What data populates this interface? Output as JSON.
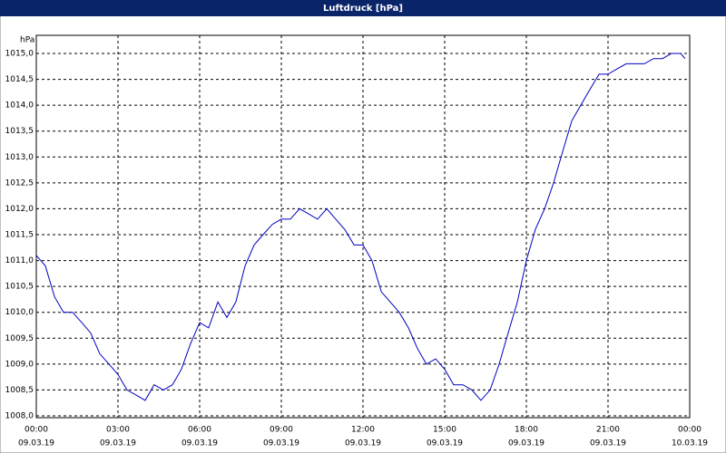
{
  "chart_data": {
    "type": "line",
    "title": "Luftdruck [hPa]",
    "y_unit": "hPa",
    "x": [
      0,
      0.33,
      0.67,
      1,
      1.33,
      1.67,
      2,
      2.33,
      2.67,
      3,
      3.33,
      3.67,
      4,
      4.33,
      4.67,
      5,
      5.33,
      5.67,
      6,
      6.33,
      6.67,
      7,
      7.33,
      7.67,
      8,
      8.33,
      8.67,
      9,
      9.33,
      9.67,
      10,
      10.33,
      10.67,
      11,
      11.33,
      11.67,
      12,
      12.33,
      12.67,
      13,
      13.33,
      13.67,
      14,
      14.33,
      14.67,
      15,
      15.33,
      15.67,
      16,
      16.33,
      16.67,
      17,
      17.33,
      17.67,
      18,
      18.33,
      18.67,
      19,
      19.33,
      19.67,
      20,
      20.33,
      20.67,
      21,
      21.33,
      21.67,
      22,
      22.33,
      22.67,
      23,
      23.33,
      23.67,
      23.83
    ],
    "series": [
      {
        "name": "Luftdruck",
        "color": "#0000c0",
        "values": [
          1011.1,
          1010.9,
          1010.3,
          1010.0,
          1010.0,
          1009.8,
          1009.6,
          1009.2,
          1009.0,
          1008.8,
          1008.5,
          1008.4,
          1008.3,
          1008.6,
          1008.5,
          1008.6,
          1008.9,
          1009.4,
          1009.8,
          1009.7,
          1010.2,
          1009.9,
          1010.2,
          1010.9,
          1011.3,
          1011.5,
          1011.7,
          1011.8,
          1011.8,
          1012.0,
          1011.9,
          1011.8,
          1012.0,
          1011.8,
          1011.6,
          1011.3,
          1011.3,
          1011.0,
          1010.4,
          1010.2,
          1010.0,
          1009.7,
          1009.3,
          1009.0,
          1009.1,
          1008.9,
          1008.6,
          1008.6,
          1008.5,
          1008.3,
          1008.5,
          1009.0,
          1009.6,
          1010.2,
          1011.0,
          1011.6,
          1012.0,
          1012.5,
          1013.1,
          1013.7,
          1014.0,
          1014.3,
          1014.6,
          1014.6,
          1014.7,
          1014.8,
          1014.8,
          1014.8,
          1014.9,
          1014.9,
          1015.0,
          1015.0,
          1014.9
        ]
      }
    ],
    "xlim": [
      0,
      24
    ],
    "xticks": [
      {
        "value": 0,
        "label": "00:00"
      },
      {
        "value": 3,
        "label": "03:00"
      },
      {
        "value": 6,
        "label": "06:00"
      },
      {
        "value": 9,
        "label": "09:00"
      },
      {
        "value": 12,
        "label": "12:00"
      },
      {
        "value": 15,
        "label": "15:00"
      },
      {
        "value": 18,
        "label": "18:00"
      },
      {
        "value": 21,
        "label": "21:00"
      },
      {
        "value": 24,
        "label": "00:00"
      }
    ],
    "xtick_dates": [
      "09.03.19",
      "09.03.19",
      "09.03.19",
      "09.03.19",
      "09.03.19",
      "09.03.19",
      "09.03.19",
      "09.03.19",
      "10.03.19"
    ],
    "ylim": [
      1008,
      1015
    ],
    "yticks": [
      {
        "value": 1008,
        "label": "1008,0"
      },
      {
        "value": 1008.5,
        "label": "1008,5"
      },
      {
        "value": 1009,
        "label": "1009,0"
      },
      {
        "value": 1009.5,
        "label": "1009,5"
      },
      {
        "value": 1010,
        "label": "1010,0"
      },
      {
        "value": 1010.5,
        "label": "1010,5"
      },
      {
        "value": 1011,
        "label": "1011,0"
      },
      {
        "value": 1011.5,
        "label": "1011,5"
      },
      {
        "value": 1012,
        "label": "1012,0"
      },
      {
        "value": 1012.5,
        "label": "1012,5"
      },
      {
        "value": 1013,
        "label": "1013,0"
      },
      {
        "value": 1013.5,
        "label": "1013,5"
      },
      {
        "value": 1014,
        "label": "1014,0"
      },
      {
        "value": 1014.5,
        "label": "1014,5"
      },
      {
        "value": 1015,
        "label": "1015,0"
      }
    ],
    "grid": true
  }
}
